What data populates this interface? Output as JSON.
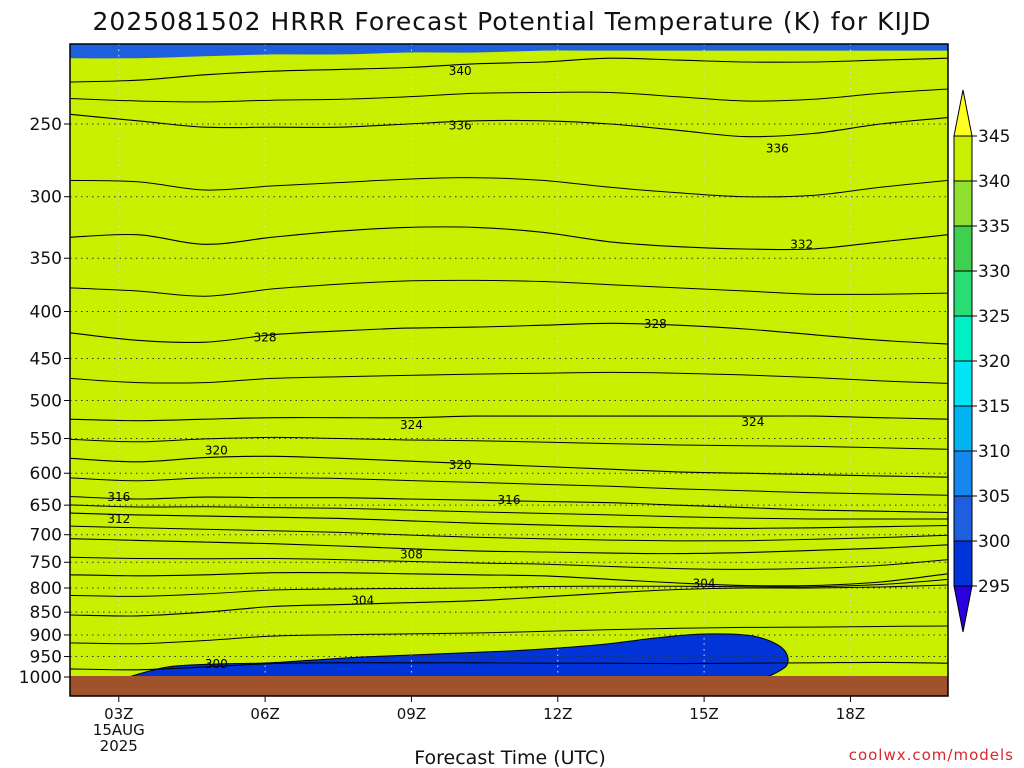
{
  "chart_data": {
    "type": "heatmap",
    "title": "2025081502 HRRR Forecast Potential Temperature (K) for KIJD",
    "xlabel": "Forecast Time (UTC)",
    "credit": "coolwx.com/models",
    "x_ticks": [
      {
        "label": "03Z",
        "hours": 1,
        "sub1": "15AUG",
        "sub2": "2025"
      },
      {
        "label": "06Z",
        "hours": 4
      },
      {
        "label": "09Z",
        "hours": 7
      },
      {
        "label": "12Z",
        "hours": 10
      },
      {
        "label": "15Z",
        "hours": 13
      },
      {
        "label": "18Z",
        "hours": 16
      }
    ],
    "x_range_hours": [
      0,
      18
    ],
    "y_ticks": [
      1000,
      950,
      900,
      850,
      800,
      750,
      700,
      650,
      600,
      550,
      500,
      450,
      400,
      350,
      300,
      250
    ],
    "y_range_hpa": [
      1025,
      200
    ],
    "colorbar": {
      "levels": [
        295,
        300,
        305,
        310,
        315,
        320,
        325,
        330,
        335,
        340,
        345
      ],
      "colors": [
        "#2a00e0",
        "#0033d8",
        "#1e5fe0",
        "#1488ee",
        "#00b4f2",
        "#00e4f4",
        "#00f0c4",
        "#2adc74",
        "#40d050",
        "#90e030",
        "#c8f000",
        "#ffff20"
      ]
    },
    "contours": [
      {
        "value": 300,
        "label": "300",
        "pressure": [
          980,
          982,
          975,
          967,
          965,
          965,
          965,
          966,
          966,
          967,
          966,
          965,
          964,
          966
        ],
        "label_hour": 3,
        "label_p": 968
      },
      {
        "value": 304,
        "label": "304",
        "pressure": [
          856,
          858,
          850,
          838,
          834,
          830,
          826,
          818,
          810,
          803,
          800,
          800,
          798,
          794
        ],
        "label_hour": 6,
        "label_p": 825
      },
      {
        "value": 304,
        "label": "304",
        "pressure": [
          774,
          776,
          774,
          770,
          770,
          772,
          774,
          776,
          783,
          790,
          795,
          795,
          788,
          772
        ],
        "label_hour": 13,
        "label_p": 791
      },
      {
        "value": 308,
        "label": "308",
        "pressure": [
          707,
          710,
          713,
          716,
          720,
          725,
          729,
          731,
          733,
          734,
          732,
          728,
          724,
          718
        ],
        "label_hour": 7,
        "label_p": 736
      },
      {
        "value": 312,
        "label": "312",
        "pressure": [
          663,
          666,
          668,
          670,
          672,
          676,
          680,
          683,
          686,
          688,
          689,
          688,
          686,
          684
        ],
        "label_hour": 1,
        "label_p": 673
      },
      {
        "value": 316,
        "label": "316",
        "pressure": [
          636,
          640,
          637,
          638,
          638,
          640,
          642,
          644,
          646,
          650,
          654,
          658,
          660,
          662
        ],
        "label_hour": 1,
        "label_p": 637,
        "label2_hour": 9,
        "label2_p": 642
      },
      {
        "value": 320,
        "label": "320",
        "pressure": [
          578,
          583,
          577,
          575,
          578,
          582,
          586,
          590,
          594,
          598,
          600,
          602,
          604,
          606
        ],
        "label_hour": 3,
        "label_p": 567,
        "label2_hour": 8,
        "label2_p": 588
      },
      {
        "value": 324,
        "label": "324",
        "pressure": [
          524,
          526,
          524,
          522,
          522,
          522,
          520,
          520,
          520,
          520,
          520,
          520,
          522,
          524
        ],
        "label_hour": 7,
        "label_p": 532,
        "label2_hour": 14,
        "label2_p": 528
      },
      {
        "value": 328,
        "label": "328",
        "pressure": [
          422,
          430,
          432,
          424,
          420,
          417,
          416,
          414,
          412,
          414,
          418,
          424,
          430,
          434
        ],
        "label_hour": 4,
        "label_p": 427,
        "label2_hour": 12,
        "label2_p": 413
      },
      {
        "value": 332,
        "label": "332",
        "pressure": [
          332,
          330,
          338,
          332,
          327,
          324,
          324,
          328,
          336,
          340,
          342,
          342,
          336,
          330
        ],
        "label_hour": 15,
        "label_p": 338
      },
      {
        "value": 336,
        "label": "336",
        "pressure": [
          244,
          248,
          252,
          252,
          252,
          250,
          248,
          248,
          250,
          254,
          258,
          256,
          250,
          246
        ],
        "label_hour": 8,
        "label_p": 251,
        "label2_hour": 14.5,
        "label2_p": 266
      },
      {
        "value": 340,
        "label": "340",
        "pressure": [
          225,
          224,
          221,
          219,
          218,
          217,
          215,
          214,
          212,
          213,
          214,
          214,
          213,
          212
        ],
        "label_hour": 8,
        "label_p": 219
      }
    ],
    "fills": [
      {
        "level": 305,
        "top_hpa": [
          703,
          707,
          711,
          714,
          717,
          721,
          726,
          730,
          732,
          733,
          731,
          728,
          724,
          718
        ]
      },
      {
        "level": 310,
        "top_hpa": [
          658,
          662,
          664,
          666,
          668,
          671,
          674,
          677,
          680,
          682,
          682,
          680,
          678,
          676
        ]
      },
      {
        "level": 315,
        "top_hpa": [
          628,
          630,
          626,
          625,
          626,
          628,
          630,
          632,
          636,
          640,
          644,
          648,
          652,
          656
        ]
      },
      {
        "level": 320,
        "top_hpa": [
          562,
          556,
          552,
          552,
          554,
          558,
          562,
          566,
          570,
          574,
          578,
          580,
          584,
          588
        ]
      },
      {
        "level": 325,
        "top_hpa": [
          488,
          472,
          474,
          500,
          496,
          496,
          495,
          494,
          494,
          494,
          494,
          494,
          494,
          494
        ]
      },
      {
        "level": 330,
        "top_hpa": [
          290,
          286,
          282,
          278,
          274,
          271,
          270,
          270,
          272,
          276,
          278,
          280,
          280,
          280
        ]
      },
      {
        "level": 335,
        "top_hpa": [
          226,
          226,
          225,
          224,
          224,
          223,
          222,
          221,
          220,
          220,
          221,
          222,
          221,
          220
        ]
      },
      {
        "level": 340,
        "top_hpa": [
          212,
          212,
          211,
          210,
          210,
          209,
          209,
          208,
          208,
          208,
          208,
          208,
          208,
          208
        ]
      }
    ],
    "cold_pool": {
      "level": 300,
      "label": "300"
    }
  }
}
